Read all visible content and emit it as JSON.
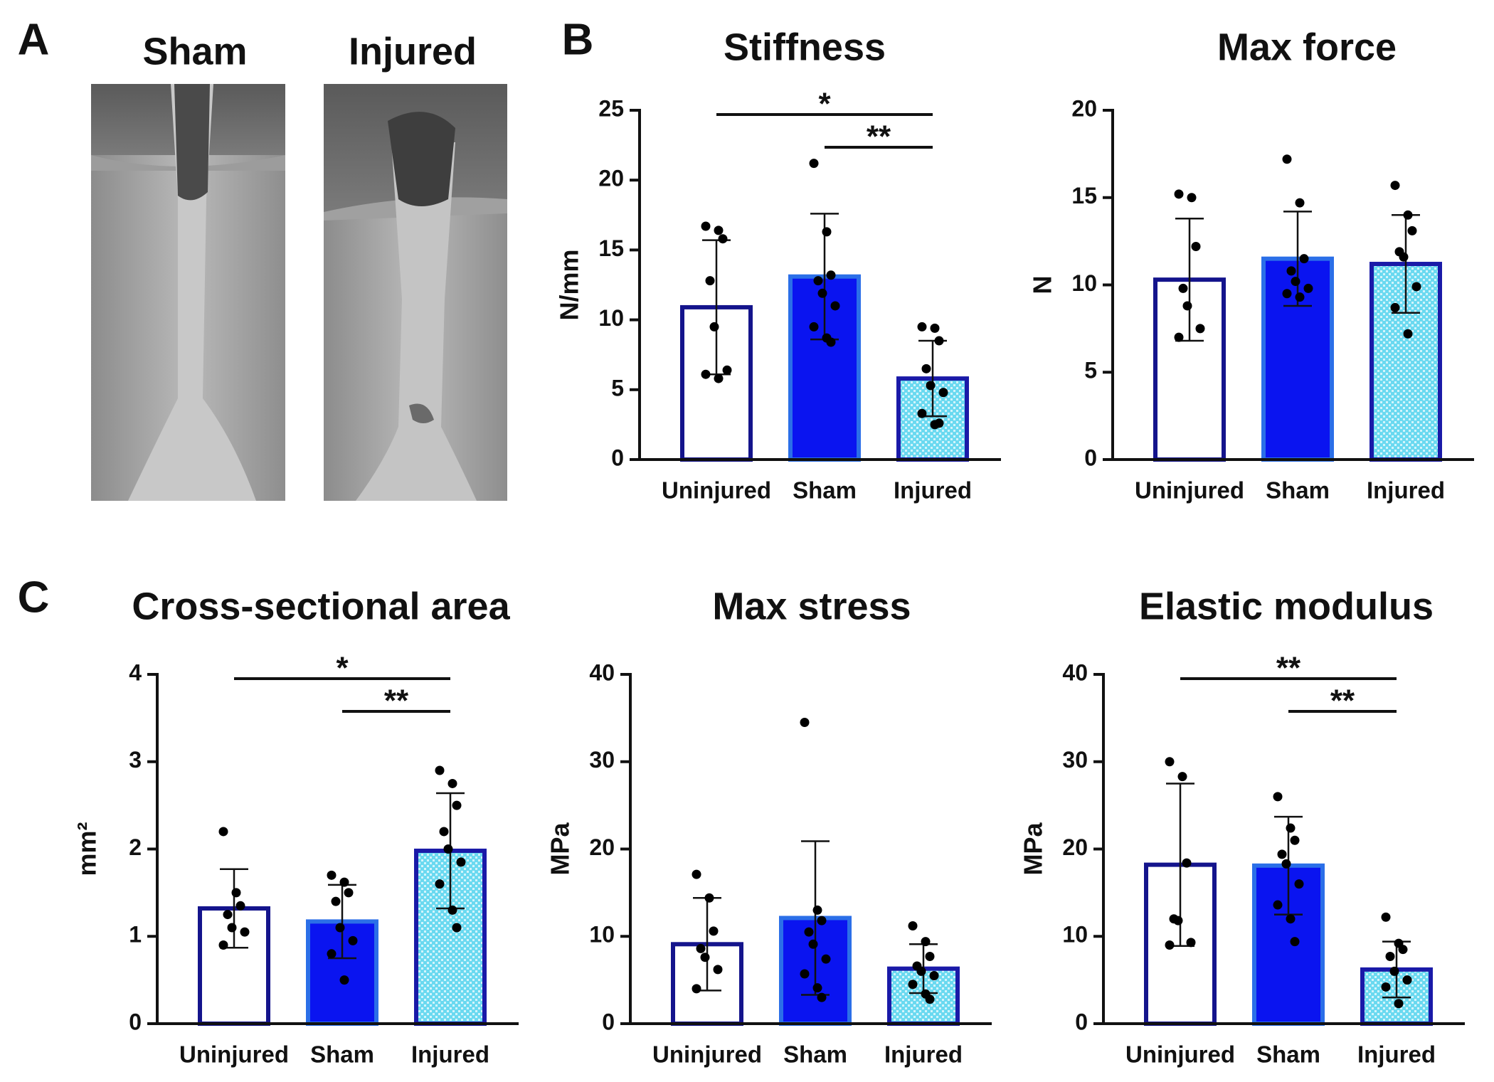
{
  "panel_labels": [
    "A",
    "B",
    "C"
  ],
  "image_labels": [
    "Sham",
    "Injured"
  ],
  "chart_data": [
    {
      "type": "bar",
      "title": "Stiffness",
      "ylabel": "N/mm",
      "categories": [
        "Uninjured",
        "Sham",
        "Injured"
      ],
      "values": [
        10.9,
        13.1,
        5.8
      ],
      "errors": [
        4.8,
        4.5,
        2.7
      ],
      "points": [
        [
          16.7,
          16.4,
          15.8,
          12.8,
          9.5,
          6.4,
          6.1,
          5.8
        ],
        [
          21.2,
          16.3,
          13.2,
          12.8,
          11.9,
          11.0,
          9.5,
          8.7,
          8.4
        ],
        [
          9.5,
          9.4,
          8.5,
          6.5,
          5.3,
          4.8,
          3.3,
          2.5,
          2.6
        ]
      ],
      "colors": [
        "#ffffff",
        "#0a14f0",
        "#6ad9f0"
      ],
      "edge_colors": [
        "#14148c",
        "#2b6fe8",
        "#1a1aa8"
      ],
      "hatched": [
        false,
        false,
        true
      ],
      "ylim": [
        0,
        25
      ],
      "yticks": [
        0,
        5,
        10,
        15,
        20,
        25
      ],
      "annotations": [
        {
          "label": "*",
          "between": [
            "Uninjured",
            "Injured"
          ]
        },
        {
          "label": "**",
          "between": [
            "Sham",
            "Injured"
          ]
        }
      ]
    },
    {
      "type": "bar",
      "title": "Max force",
      "ylabel": "N",
      "categories": [
        "Uninjured",
        "Sham",
        "Injured"
      ],
      "values": [
        10.3,
        11.5,
        11.2
      ],
      "errors": [
        3.5,
        2.7,
        2.8
      ],
      "points": [
        [
          15.2,
          15.0,
          12.2,
          9.8,
          8.8,
          7.5,
          7.0
        ],
        [
          17.2,
          14.7,
          11.5,
          10.8,
          10.2,
          9.8,
          9.5,
          9.3
        ],
        [
          15.7,
          14.0,
          13.1,
          11.9,
          11.6,
          9.9,
          8.7,
          7.2
        ]
      ],
      "colors": [
        "#ffffff",
        "#0a14f0",
        "#6ad9f0"
      ],
      "edge_colors": [
        "#14148c",
        "#2b6fe8",
        "#1a1aa8"
      ],
      "hatched": [
        false,
        false,
        true
      ],
      "ylim": [
        0,
        20
      ],
      "yticks": [
        0,
        5,
        10,
        15,
        20
      ],
      "annotations": []
    },
    {
      "type": "bar",
      "title": "Cross-sectional area",
      "ylabel": "mm²",
      "categories": [
        "Uninjured",
        "Sham",
        "Injured"
      ],
      "values": [
        1.32,
        1.17,
        1.98
      ],
      "errors": [
        0.45,
        0.42,
        0.66
      ],
      "points": [
        [
          2.2,
          1.5,
          1.35,
          1.25,
          1.1,
          1.05,
          0.9
        ],
        [
          1.7,
          1.62,
          1.5,
          1.4,
          1.1,
          0.95,
          0.8,
          0.5
        ],
        [
          2.9,
          2.75,
          2.5,
          2.2,
          2.0,
          1.85,
          1.6,
          1.3,
          1.1
        ]
      ],
      "colors": [
        "#ffffff",
        "#0a14f0",
        "#6ad9f0"
      ],
      "edge_colors": [
        "#14148c",
        "#2b6fe8",
        "#1a1aa8"
      ],
      "hatched": [
        false,
        false,
        true
      ],
      "ylim": [
        0,
        4
      ],
      "yticks": [
        0,
        1,
        2,
        3,
        4
      ],
      "annotations": [
        {
          "label": "*",
          "between": [
            "Uninjured",
            "Injured"
          ]
        },
        {
          "label": "**",
          "between": [
            "Sham",
            "Injured"
          ]
        }
      ]
    },
    {
      "type": "bar",
      "title": "Max stress",
      "ylabel": "MPa",
      "categories": [
        "Uninjured",
        "Sham",
        "Injured"
      ],
      "values": [
        9.1,
        12.1,
        6.3
      ],
      "errors": [
        5.3,
        8.8,
        2.8
      ],
      "points": [
        [
          17.1,
          14.4,
          10.6,
          8.6,
          7.6,
          6.2,
          4.0
        ],
        [
          34.5,
          13.0,
          11.8,
          10.5,
          9.1,
          7.4,
          5.7,
          4.1,
          3.0
        ],
        [
          11.2,
          9.4,
          7.7,
          6.6,
          6.0,
          5.5,
          4.5,
          3.4,
          2.8
        ]
      ],
      "colors": [
        "#ffffff",
        "#0a14f0",
        "#6ad9f0"
      ],
      "edge_colors": [
        "#14148c",
        "#2b6fe8",
        "#1a1aa8"
      ],
      "hatched": [
        false,
        false,
        true
      ],
      "ylim": [
        0,
        40
      ],
      "yticks": [
        0,
        10,
        20,
        30,
        40
      ],
      "annotations": []
    },
    {
      "type": "bar",
      "title": "Elastic modulus",
      "ylabel": "MPa",
      "categories": [
        "Uninjured",
        "Sham",
        "Injured"
      ],
      "values": [
        18.2,
        18.1,
        6.2
      ],
      "errors": [
        9.3,
        5.6,
        3.2
      ],
      "points": [
        [
          30.0,
          28.3,
          18.4,
          12.0,
          11.8,
          9.3,
          9.0
        ],
        [
          26.0,
          22.4,
          21.0,
          19.4,
          18.3,
          16.0,
          13.6,
          12.0,
          9.4
        ],
        [
          12.2,
          9.2,
          8.5,
          7.7,
          6.0,
          5.0,
          4.2,
          2.3
        ]
      ],
      "colors": [
        "#ffffff",
        "#0a14f0",
        "#6ad9f0"
      ],
      "edge_colors": [
        "#14148c",
        "#2b6fe8",
        "#1a1aa8"
      ],
      "hatched": [
        false,
        false,
        true
      ],
      "ylim": [
        0,
        40
      ],
      "yticks": [
        0,
        10,
        20,
        30,
        40
      ],
      "annotations": [
        {
          "label": "**",
          "between": [
            "Uninjured",
            "Injured"
          ]
        },
        {
          "label": "**",
          "between": [
            "Sham",
            "Injured"
          ]
        }
      ]
    }
  ]
}
